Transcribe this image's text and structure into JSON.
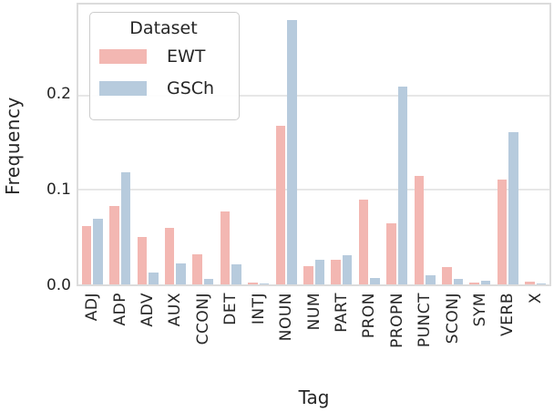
{
  "figure": {
    "ylabel": "Frequency",
    "xlabel": "Tag",
    "yticks": [
      "0.0",
      "0.1",
      "0.2"
    ]
  },
  "legend": {
    "title": "Dataset",
    "entries": [
      {
        "label": "EWT",
        "color": "#f3b7b2"
      },
      {
        "label": "GSCh",
        "color": "#b7cbdd"
      }
    ]
  },
  "colors": {
    "ewt_pink": "#f3b7b2",
    "gsch_blue": "#b7cbdd",
    "text": "#262626",
    "gridline": "#e7e7e7",
    "spine": "#dcdcdc"
  },
  "chart_data": {
    "type": "bar",
    "title": "",
    "xlabel": "Tag",
    "ylabel": "Frequency",
    "categories": [
      "ADJ",
      "ADP",
      "ADV",
      "AUX",
      "CCONJ",
      "DET",
      "INTJ",
      "NOUN",
      "NUM",
      "PART",
      "PRON",
      "PROPN",
      "PUNCT",
      "SCONJ",
      "SYM",
      "VERB",
      "X"
    ],
    "series": [
      {
        "name": "EWT",
        "color": "#f3b7b2",
        "values": [
          0.062,
          0.083,
          0.05,
          0.06,
          0.032,
          0.077,
          0.002,
          0.168,
          0.019,
          0.026,
          0.09,
          0.065,
          0.115,
          0.018,
          0.002,
          0.111,
          0.003
        ]
      },
      {
        "name": "GSCh",
        "color": "#b7cbdd",
        "values": [
          0.069,
          0.119,
          0.013,
          0.022,
          0.006,
          0.021,
          0.001,
          0.28,
          0.026,
          0.031,
          0.007,
          0.209,
          0.01,
          0.006,
          0.004,
          0.161,
          0.001
        ]
      }
    ],
    "ylim": [
      0,
      0.296
    ],
    "ytick_values": [
      0.0,
      0.1,
      0.2
    ],
    "grid": true,
    "legend_title": "Dataset",
    "legend_position": "upper left"
  }
}
